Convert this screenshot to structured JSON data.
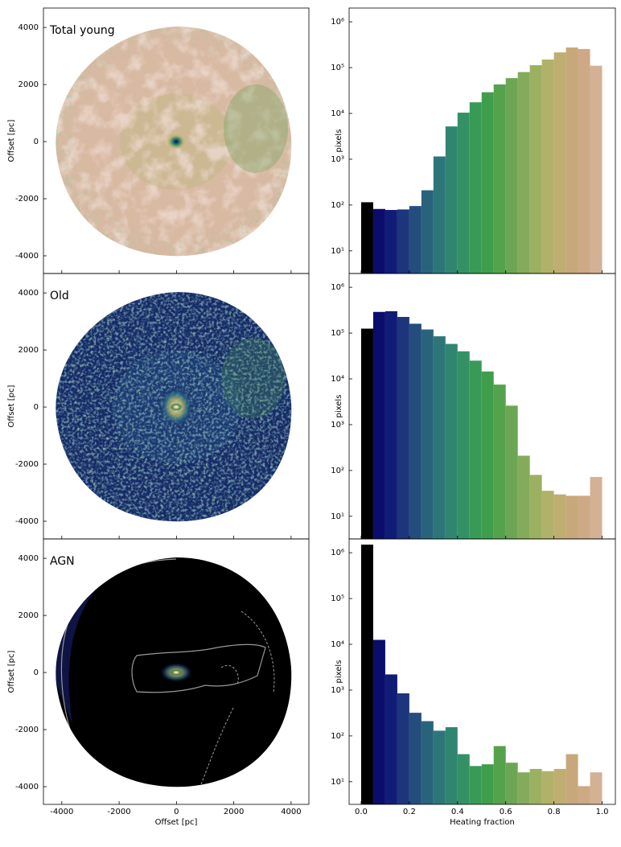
{
  "chart_data": [
    {
      "type": "image",
      "label": "Total young",
      "xlim": [
        -4640,
        4620
      ],
      "ylim": [
        -4620,
        4680
      ],
      "xticks": [
        -4000,
        -2000,
        0,
        2000,
        4000
      ],
      "yticks": [
        -4000,
        -2000,
        0,
        2000,
        4000
      ],
      "ylabel": "Offset [pc]",
      "show_xticklabels": false
    },
    {
      "type": "histogram",
      "bins": [
        0,
        0.05,
        0.1,
        0.15,
        0.2,
        0.25,
        0.3,
        0.35,
        0.4,
        0.45,
        0.5,
        0.55,
        0.6,
        0.65,
        0.7,
        0.75,
        0.8,
        0.85,
        0.9,
        0.95,
        1.0
      ],
      "values": [
        115,
        82,
        78,
        80,
        95,
        210,
        1150,
        5200,
        10400,
        17500,
        29000,
        43000,
        59000,
        80000,
        113000,
        150000,
        215000,
        275000,
        255000,
        110000
      ],
      "colors": [
        "#000000",
        "#0c0c6c",
        "#101d76",
        "#1c357b",
        "#234d7d",
        "#28637c",
        "#2c767a",
        "#308571",
        "#349166",
        "#389a57",
        "#3f9e4c",
        "#55a24c",
        "#6ca655",
        "#84ab5b",
        "#9cb062",
        "#b1b26a",
        "#bfae71",
        "#c7a87a",
        "#cda985",
        "#d4b195"
      ],
      "xlim": [
        -0.05,
        1.055
      ],
      "ylim": [
        3.2,
        2000000
      ],
      "log_y": true,
      "yticks": [
        {
          "value": 10,
          "label": "10¹"
        },
        {
          "value": 100,
          "label": "10²"
        },
        {
          "value": 1000,
          "label": "10³"
        },
        {
          "value": 10000,
          "label": "10⁴"
        },
        {
          "value": 100000,
          "label": "10⁵"
        },
        {
          "value": 1000000,
          "label": "10⁶"
        }
      ],
      "xticks": [
        0,
        0.2,
        0.4,
        0.6,
        0.8,
        1
      ],
      "ylabel": "pixels",
      "show_xticklabels": false
    },
    {
      "type": "image",
      "label": "Old",
      "xlim": [
        -4640,
        4620
      ],
      "ylim": [
        -4620,
        4680
      ],
      "xticks": [
        -4000,
        -2000,
        0,
        2000,
        4000
      ],
      "yticks": [
        -4000,
        -2000,
        0,
        2000,
        4000
      ],
      "ylabel": "Offset [pc]",
      "show_xticklabels": false
    },
    {
      "type": "histogram",
      "bins": [
        0,
        0.05,
        0.1,
        0.15,
        0.2,
        0.25,
        0.3,
        0.35,
        0.4,
        0.45,
        0.5,
        0.55,
        0.6,
        0.65,
        0.7,
        0.75,
        0.8,
        0.85,
        0.9,
        0.95,
        1.0
      ],
      "values": [
        125000,
        290000,
        300000,
        225000,
        160000,
        120000,
        85000,
        58000,
        40000,
        25000,
        14500,
        7500,
        2600,
        210,
        80,
        36,
        30,
        28,
        28,
        72
      ],
      "colors": [
        "#000000",
        "#0c0c6c",
        "#101d76",
        "#1c357b",
        "#234d7d",
        "#28637c",
        "#2c767a",
        "#308571",
        "#349166",
        "#389a57",
        "#3f9e4c",
        "#55a24c",
        "#6ca655",
        "#84ab5b",
        "#9cb062",
        "#b1b26a",
        "#bfae71",
        "#c7a87a",
        "#cda985",
        "#d4b195"
      ],
      "xlim": [
        -0.05,
        1.055
      ],
      "ylim": [
        3.2,
        2000000
      ],
      "log_y": true,
      "yticks": [
        {
          "value": 10,
          "label": "10¹"
        },
        {
          "value": 100,
          "label": "10²"
        },
        {
          "value": 1000,
          "label": "10³"
        },
        {
          "value": 10000,
          "label": "10⁴"
        },
        {
          "value": 100000,
          "label": "10⁵"
        },
        {
          "value": 1000000,
          "label": "10⁶"
        }
      ],
      "xticks": [
        0,
        0.2,
        0.4,
        0.6,
        0.8,
        1
      ],
      "ylabel": "pixels",
      "show_xticklabels": false
    },
    {
      "type": "image",
      "label": "AGN",
      "xlim": [
        -4640,
        4620
      ],
      "ylim": [
        -4620,
        4680
      ],
      "xticks": [
        -4000,
        -2000,
        0,
        2000,
        4000
      ],
      "yticks": [
        -4000,
        -2000,
        0,
        2000,
        4000
      ],
      "ylabel": "Offset [pc]",
      "xlabel": "Offset [pc]",
      "show_xticklabels": true
    },
    {
      "type": "histogram",
      "bins": [
        0,
        0.05,
        0.1,
        0.15,
        0.2,
        0.25,
        0.3,
        0.35,
        0.4,
        0.45,
        0.5,
        0.55,
        0.6,
        0.65,
        0.7,
        0.75,
        0.8,
        0.85,
        0.9,
        0.95,
        1.0
      ],
      "values": [
        1500000,
        12500,
        2200,
        850,
        320,
        210,
        130,
        155,
        40,
        22,
        24,
        60,
        26,
        16,
        19,
        17,
        19,
        40,
        8,
        16
      ],
      "colors": [
        "#000000",
        "#0c0c6c",
        "#101d76",
        "#1c357b",
        "#234d7d",
        "#28637c",
        "#2c767a",
        "#308571",
        "#349166",
        "#389a57",
        "#3f9e4c",
        "#55a24c",
        "#6ca655",
        "#84ab5b",
        "#9cb062",
        "#b1b26a",
        "#bfae71",
        "#c7a87a",
        "#cda985",
        "#d4b195"
      ],
      "xlim": [
        -0.05,
        1.055
      ],
      "ylim": [
        3.2,
        2000000
      ],
      "log_y": true,
      "yticks": [
        {
          "value": 10,
          "label": "10¹"
        },
        {
          "value": 100,
          "label": "10²"
        },
        {
          "value": 1000,
          "label": "10³"
        },
        {
          "value": 10000,
          "label": "10⁴"
        },
        {
          "value": 100000,
          "label": "10⁵"
        },
        {
          "value": 1000000,
          "label": "10⁶"
        }
      ],
      "xticks": [
        {
          "value": 0,
          "label": "0.0"
        },
        {
          "value": 0.2,
          "label": "0.2"
        },
        {
          "value": 0.4,
          "label": "0.4"
        },
        {
          "value": 0.6,
          "label": "0.6"
        },
        {
          "value": 0.8,
          "label": "0.8"
        },
        {
          "value": 1,
          "label": "1.0"
        }
      ],
      "ylabel": "pixels",
      "xlabel": "Heating fraction",
      "show_xticklabels": true
    }
  ]
}
